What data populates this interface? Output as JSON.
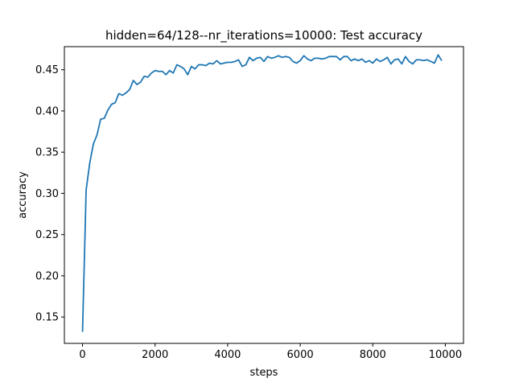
{
  "chart_data": {
    "type": "line",
    "title": "hidden=64/128--nr_iterations=10000: Test accuracy",
    "xlabel": "steps",
    "ylabel": "accuracy",
    "xlim": [
      -500,
      10500
    ],
    "ylim": [
      0.118,
      0.478
    ],
    "xticks": [
      0,
      2000,
      4000,
      6000,
      8000,
      10000
    ],
    "xtick_labels": [
      "0",
      "2000",
      "4000",
      "6000",
      "8000",
      "10000"
    ],
    "yticks": [
      0.15,
      0.2,
      0.25,
      0.3,
      0.35,
      0.4,
      0.45
    ],
    "ytick_labels": [
      "0.15",
      "0.20",
      "0.25",
      "0.30",
      "0.35",
      "0.40",
      "0.45"
    ],
    "grid": false,
    "legend": false,
    "series": [
      {
        "color": "#1f77b4",
        "x": [
          0,
          100,
          200,
          300,
          400,
          500,
          600,
          700,
          800,
          900,
          1000,
          1100,
          1200,
          1300,
          1400,
          1500,
          1600,
          1700,
          1800,
          1900,
          2000,
          2100,
          2200,
          2300,
          2400,
          2500,
          2600,
          2700,
          2800,
          2900,
          3000,
          3100,
          3200,
          3300,
          3400,
          3500,
          3600,
          3700,
          3800,
          3900,
          4000,
          4100,
          4200,
          4300,
          4400,
          4500,
          4600,
          4700,
          4800,
          4900,
          5000,
          5100,
          5200,
          5300,
          5400,
          5500,
          5600,
          5700,
          5800,
          5900,
          6000,
          6100,
          6200,
          6300,
          6400,
          6500,
          6600,
          6700,
          6800,
          6900,
          7000,
          7100,
          7200,
          7300,
          7400,
          7500,
          7600,
          7700,
          7800,
          7900,
          8000,
          8100,
          8200,
          8300,
          8400,
          8500,
          8600,
          8700,
          8800,
          8900,
          9000,
          9100,
          9200,
          9300,
          9400,
          9500,
          9600,
          9700,
          9800,
          9900
        ],
        "y": [
          0.132,
          0.304,
          0.337,
          0.36,
          0.371,
          0.39,
          0.391,
          0.401,
          0.408,
          0.41,
          0.421,
          0.419,
          0.422,
          0.426,
          0.437,
          0.432,
          0.435,
          0.442,
          0.441,
          0.446,
          0.449,
          0.448,
          0.448,
          0.444,
          0.449,
          0.446,
          0.456,
          0.454,
          0.451,
          0.444,
          0.454,
          0.451,
          0.456,
          0.456,
          0.455,
          0.458,
          0.457,
          0.461,
          0.457,
          0.458,
          0.459,
          0.459,
          0.46,
          0.462,
          0.454,
          0.456,
          0.465,
          0.461,
          0.464,
          0.465,
          0.46,
          0.466,
          0.464,
          0.465,
          0.467,
          0.465,
          0.466,
          0.465,
          0.46,
          0.458,
          0.461,
          0.467,
          0.463,
          0.461,
          0.464,
          0.464,
          0.463,
          0.464,
          0.466,
          0.466,
          0.466,
          0.462,
          0.466,
          0.466,
          0.461,
          0.463,
          0.461,
          0.463,
          0.459,
          0.461,
          0.458,
          0.463,
          0.46,
          0.462,
          0.465,
          0.457,
          0.462,
          0.463,
          0.457,
          0.466,
          0.46,
          0.457,
          0.462,
          0.462,
          0.461,
          0.462,
          0.46,
          0.458,
          0.468,
          0.461
        ]
      }
    ]
  }
}
